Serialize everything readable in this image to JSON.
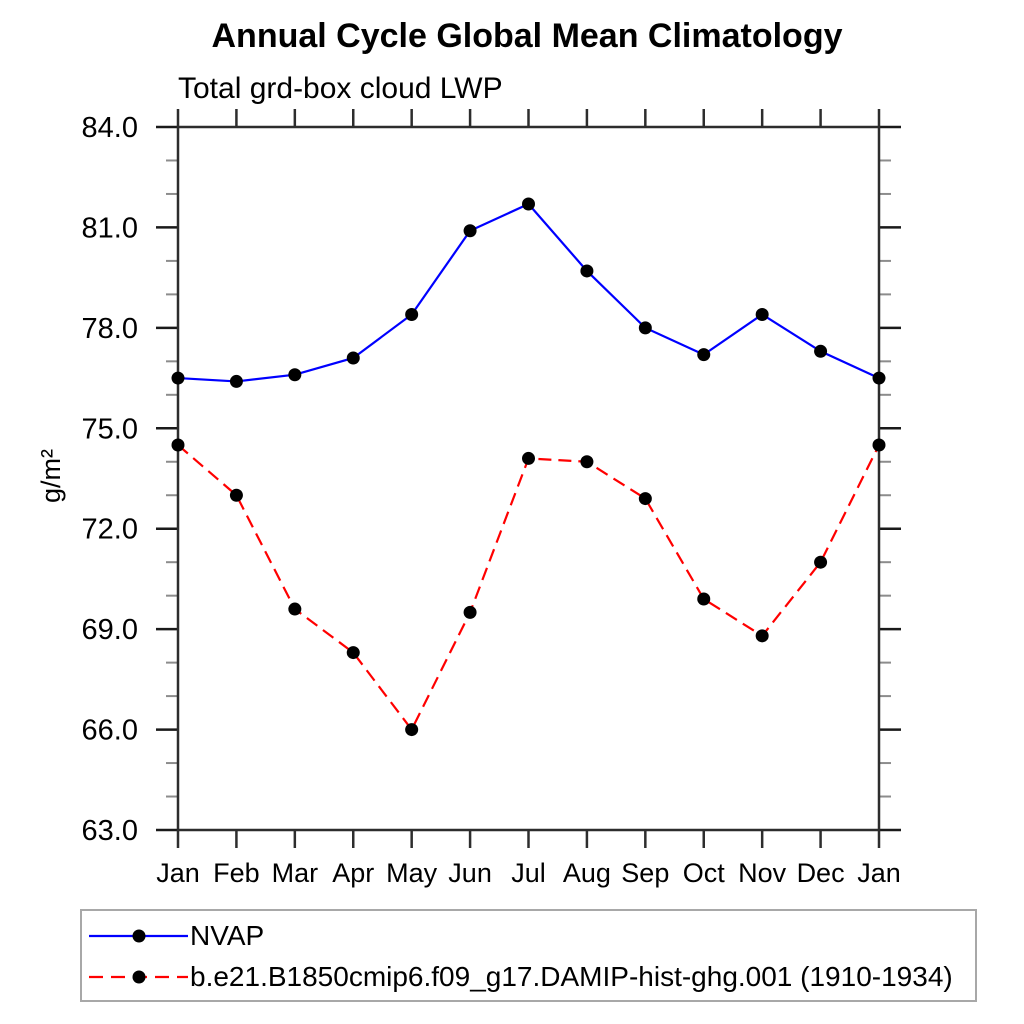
{
  "page": {
    "background": "#ffffff"
  },
  "chart_data": {
    "type": "line",
    "title": "Annual Cycle Global Mean Climatology",
    "subtitle": "Total grd-box cloud LWP",
    "ylabel": "g/m²",
    "xlabel": "",
    "x_categories": [
      "Jan",
      "Feb",
      "Mar",
      "Apr",
      "May",
      "Jun",
      "Jul",
      "Aug",
      "Sep",
      "Oct",
      "Nov",
      "Dec",
      "Jan"
    ],
    "ylim": [
      63.0,
      84.0
    ],
    "y_major_tick_step": 3.0,
    "y_minor_tick_step": 1.0,
    "y_tick_decimals": 1,
    "grid": false,
    "axis_color": "#2d2d2d",
    "marker_color": "#000000",
    "legend": {
      "position": "bottom",
      "border": true
    },
    "series": [
      {
        "name": "NVAP",
        "color": "#0000ff",
        "line_style": "solid",
        "marker": "circle",
        "values": [
          76.5,
          76.4,
          76.6,
          77.1,
          78.4,
          80.9,
          81.7,
          79.7,
          78.0,
          77.2,
          78.4,
          77.3,
          76.5
        ]
      },
      {
        "name": "b.e21.B1850cmip6.f09_g17.DAMIP-hist-ghg.001 (1910-1934)",
        "color": "#ff0000",
        "line_style": "dashed",
        "marker": "circle",
        "values": [
          74.5,
          73.0,
          69.6,
          68.3,
          66.0,
          69.5,
          74.1,
          74.0,
          72.9,
          69.9,
          68.8,
          71.0,
          74.5
        ]
      }
    ]
  }
}
